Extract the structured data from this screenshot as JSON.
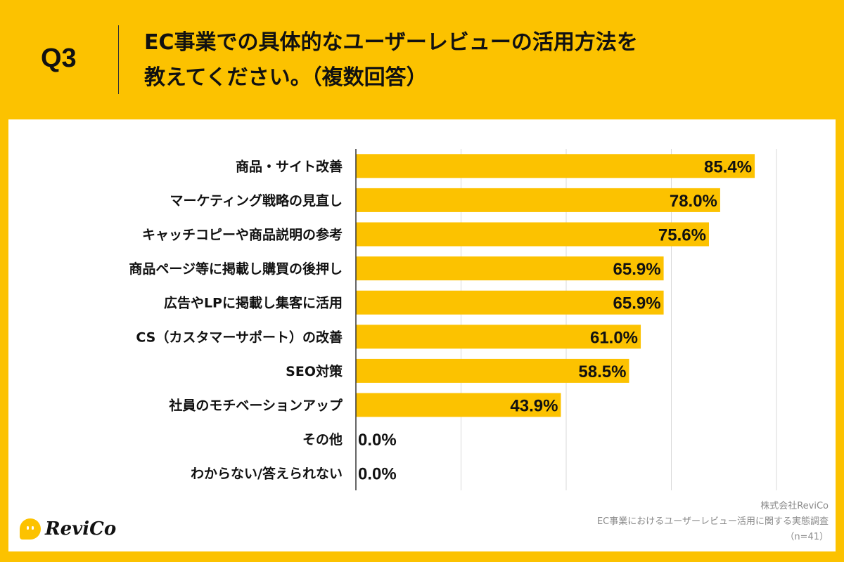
{
  "header": {
    "question": "Q3",
    "title_line1": "EC事業での具体的なユーザーレビューの活用方法を",
    "title_line2": "教えてください。（複数回答）"
  },
  "footer": {
    "company": "株式会社ReviCo",
    "survey": "EC事業におけるユーザーレビュー活用に関する実態調査",
    "n": "（n=41）",
    "logo": "ReviCo"
  },
  "colors": {
    "background": "#FCC200",
    "bar": "#FCC200",
    "grid": "#d9d9d9",
    "axis": "#333333"
  },
  "chart_data": {
    "type": "bar",
    "orientation": "horizontal",
    "grid": true,
    "unit": "%",
    "categories": [
      "商品・サイト改善",
      "マーケティング戦略の見直し",
      "キャッチコピーや商品説明の参考",
      "商品ページ等に掲載し購買の後押し",
      "広告やLPに掲載し集客に活用",
      "CS（カスタマーサポート）の改善",
      "SEO対策",
      "社員のモチベーションアップ",
      "その他",
      "わからない/答えられない"
    ],
    "values": [
      85.4,
      78.0,
      75.6,
      65.9,
      65.9,
      61.0,
      58.5,
      43.9,
      0.0,
      0.0
    ],
    "data_labels": [
      "85.4%",
      "78.0%",
      "75.6%",
      "65.9%",
      "65.9%",
      "61.0%",
      "58.5%",
      "43.9%",
      "0.0%",
      "0.0%"
    ]
  }
}
